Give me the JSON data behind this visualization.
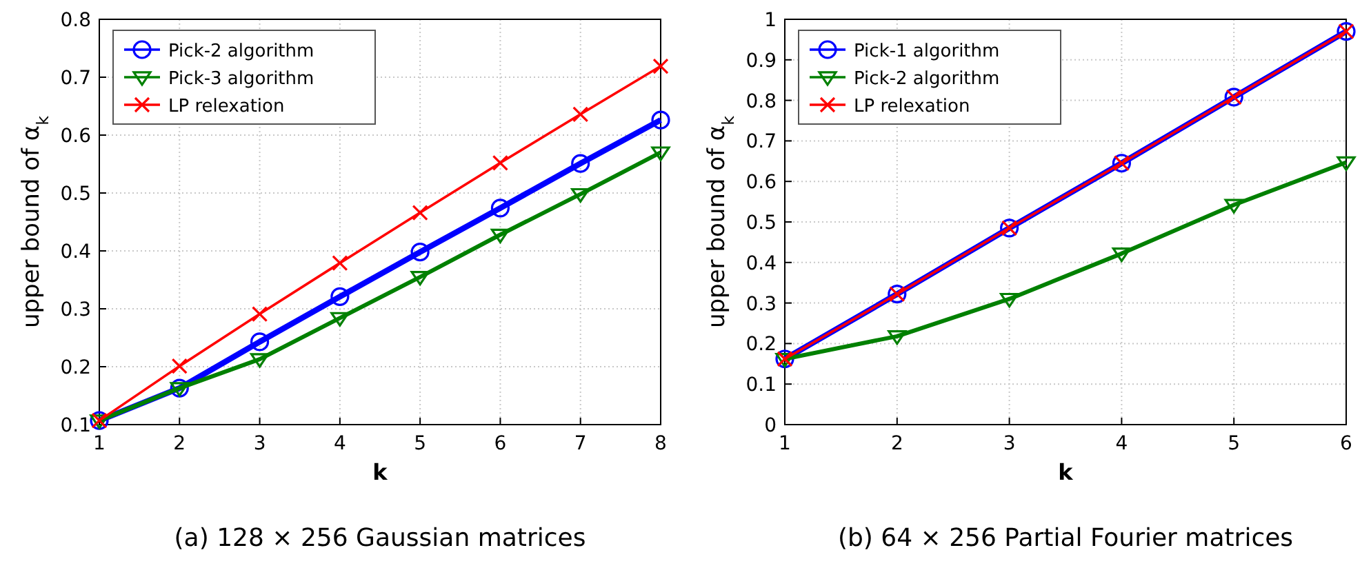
{
  "chart_data": [
    {
      "type": "line",
      "xlabel": "k",
      "ylabel": "upper bound of α$_{k}$",
      "x": [
        1,
        2,
        3,
        4,
        5,
        6,
        7,
        8
      ],
      "xlim": [
        1,
        8
      ],
      "xticks": [
        1,
        2,
        3,
        4,
        5,
        6,
        7,
        8
      ],
      "ylim": [
        0.1,
        0.8
      ],
      "yticks": [
        0.1,
        0.2,
        0.3,
        0.4,
        0.5,
        0.6,
        0.7,
        0.8
      ],
      "grid": true,
      "legend": "top left",
      "annotations": [
        "(a) 128 × 256 Gaussian matrices"
      ],
      "series": [
        {
          "name": "Pick-2 algorithm",
          "color": "#0000ff",
          "marker": "circle",
          "values": [
            0.107,
            0.163,
            0.243,
            0.321,
            0.398,
            0.474,
            0.551,
            0.626
          ]
        },
        {
          "name": "Pick-3 algorithm",
          "color": "#008000",
          "marker": "triangle",
          "values": [
            0.107,
            0.163,
            0.213,
            0.284,
            0.355,
            0.428,
            0.498,
            0.57
          ]
        },
        {
          "name": "LP relexation",
          "color": "#ff0000",
          "marker": "cross",
          "values": [
            0.107,
            0.201,
            0.291,
            0.379,
            0.466,
            0.552,
            0.636,
            0.719
          ]
        }
      ]
    },
    {
      "type": "line",
      "xlabel": "k",
      "ylabel": "upper bound of α$_{k}$",
      "x": [
        1,
        2,
        3,
        4,
        5,
        6
      ],
      "xlim": [
        1,
        6
      ],
      "xticks": [
        1,
        2,
        3,
        4,
        5,
        6
      ],
      "ylim": [
        0,
        1
      ],
      "yticks": [
        0,
        0.1,
        0.2,
        0.3,
        0.4,
        0.5,
        0.6,
        0.7,
        0.8,
        0.9,
        1
      ],
      "grid": true,
      "legend": "top left",
      "annotations": [
        "(b) 64 × 256 Partial Fourier matrices"
      ],
      "series": [
        {
          "name": "Pick-1 algorithm",
          "color": "#0000ff",
          "marker": "circle",
          "values": [
            0.162,
            0.322,
            0.485,
            0.645,
            0.808,
            0.97
          ]
        },
        {
          "name": "Pick-2 algorithm",
          "color": "#008000",
          "marker": "triangle",
          "values": [
            0.162,
            0.218,
            0.31,
            0.422,
            0.542,
            0.647
          ]
        },
        {
          "name": "LP relexation",
          "color": "#ff0000",
          "marker": "cross",
          "values": [
            0.162,
            0.322,
            0.485,
            0.645,
            0.808,
            0.97
          ]
        }
      ]
    }
  ]
}
